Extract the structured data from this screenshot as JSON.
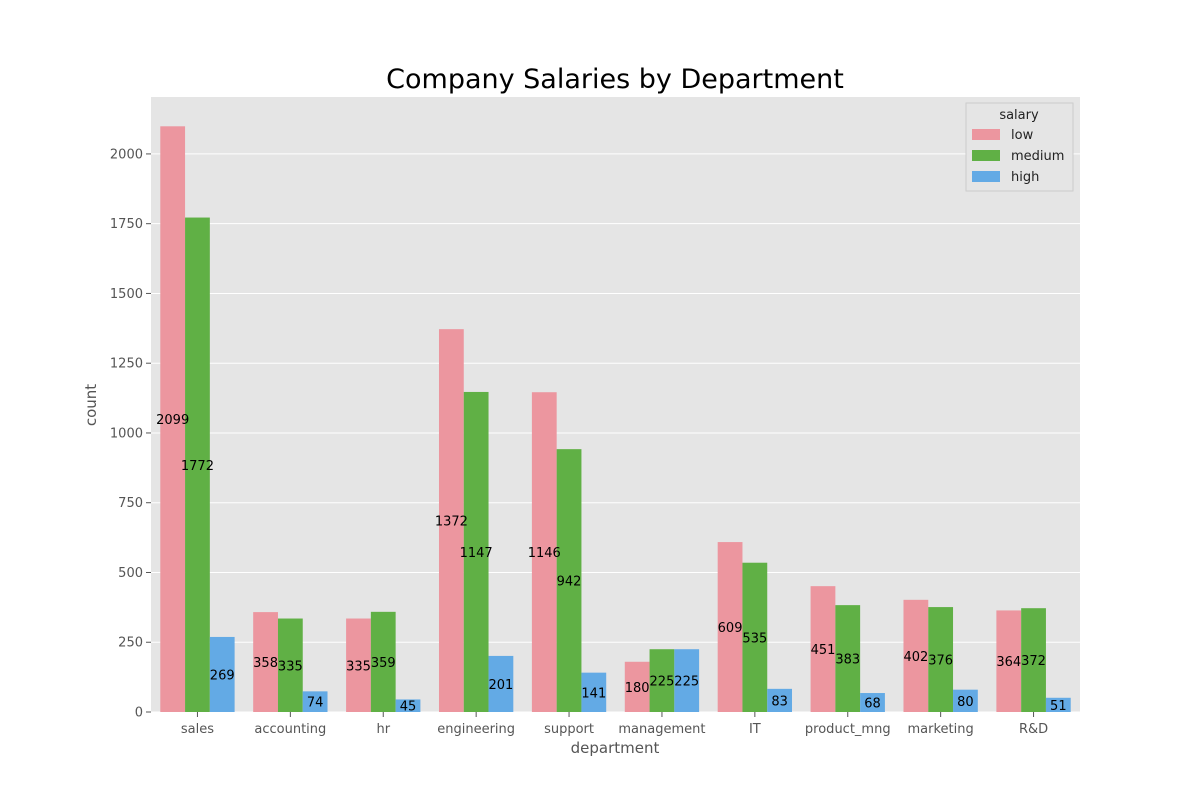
{
  "chart_data": {
    "type": "bar",
    "title": "Company Salaries by Department",
    "xlabel": "department",
    "ylabel": "count",
    "categories": [
      "sales",
      "accounting",
      "hr",
      "engineering",
      "support",
      "management",
      "IT",
      "product_mng",
      "marketing",
      "R&D"
    ],
    "series": [
      {
        "name": "low",
        "color": "#ec969f",
        "values": [
          2099,
          358,
          335,
          1372,
          1146,
          180,
          609,
          451,
          402,
          364
        ]
      },
      {
        "name": "medium",
        "color": "#60b045",
        "values": [
          1772,
          335,
          359,
          1147,
          942,
          225,
          535,
          383,
          376,
          372
        ]
      },
      {
        "name": "high",
        "color": "#63aae5",
        "values": [
          269,
          74,
          45,
          201,
          141,
          225,
          83,
          68,
          80,
          51
        ]
      }
    ],
    "ylim": [
      0,
      2204
    ],
    "yticks": [
      0,
      250,
      500,
      750,
      1000,
      1250,
      1500,
      1750,
      2000
    ],
    "grid": true,
    "legend": {
      "title": "salary",
      "placement": "top-right"
    },
    "background_color": "#e5e5e5"
  }
}
